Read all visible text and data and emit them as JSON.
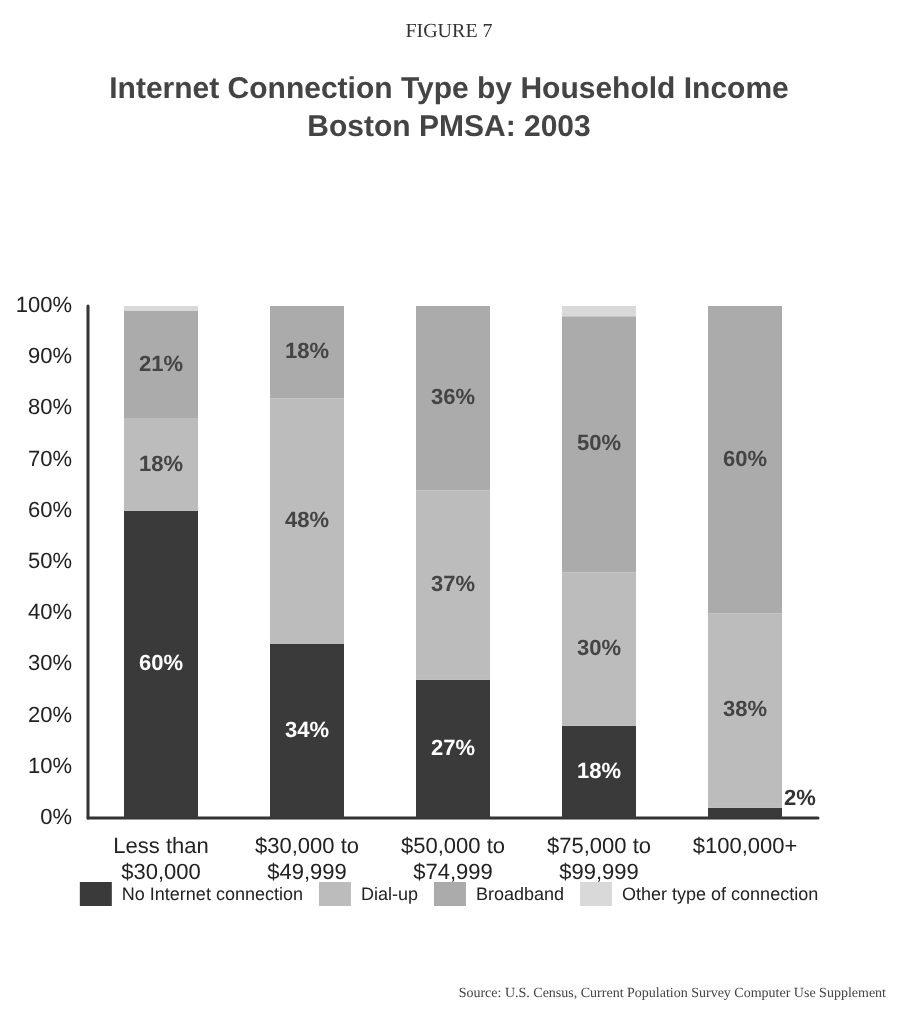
{
  "chart_data": {
    "type": "bar",
    "subtitle": "FIGURE 7",
    "title": "Internet Connection Type by Household Income\nBoston PMSA: 2003",
    "categories": [
      "Less than\n$30,000",
      "$30,000 to\n$49,999",
      "$50,000 to\n$74,999",
      "$75,000 to\n$99,999",
      "$100,000+"
    ],
    "stacked": true,
    "series": [
      {
        "name": "No Internet connection",
        "color": "#3a3a3a",
        "values": [
          60,
          34,
          27,
          18,
          2
        ],
        "value_labels": [
          "60%",
          "34%",
          "27%",
          "18%",
          "2%"
        ]
      },
      {
        "name": "Dial-up",
        "color": "#bcbcbc",
        "values": [
          18,
          48,
          37,
          30,
          38
        ],
        "value_labels": [
          "18%",
          "48%",
          "37%",
          "30%",
          "38%"
        ]
      },
      {
        "name": "Broadband",
        "color": "#ababab",
        "values": [
          21,
          18,
          36,
          50,
          60
        ],
        "value_labels": [
          "21%",
          "18%",
          "36%",
          "50%",
          "60%"
        ]
      },
      {
        "name": "Other type of connection",
        "color": "#d9d9d9",
        "values": [
          1,
          0,
          0,
          2,
          0
        ]
      }
    ],
    "ylim": [
      0,
      100
    ],
    "yticks": [
      {
        "value": 0,
        "label": "0%"
      },
      {
        "value": 10,
        "label": "10%"
      },
      {
        "value": 20,
        "label": "20%"
      },
      {
        "value": 30,
        "label": "30%"
      },
      {
        "value": 40,
        "label": "40%"
      },
      {
        "value": 50,
        "label": "50%"
      },
      {
        "value": 60,
        "label": "60%"
      },
      {
        "value": 70,
        "label": "70%"
      },
      {
        "value": 80,
        "label": "80%"
      },
      {
        "value": 90,
        "label": "90%"
      },
      {
        "value": 100,
        "label": "100%"
      }
    ],
    "grid": false,
    "legend": "bottom",
    "annotations": [
      "Source: U.S. Census, Current Population Survey Computer Use Supplement"
    ]
  }
}
